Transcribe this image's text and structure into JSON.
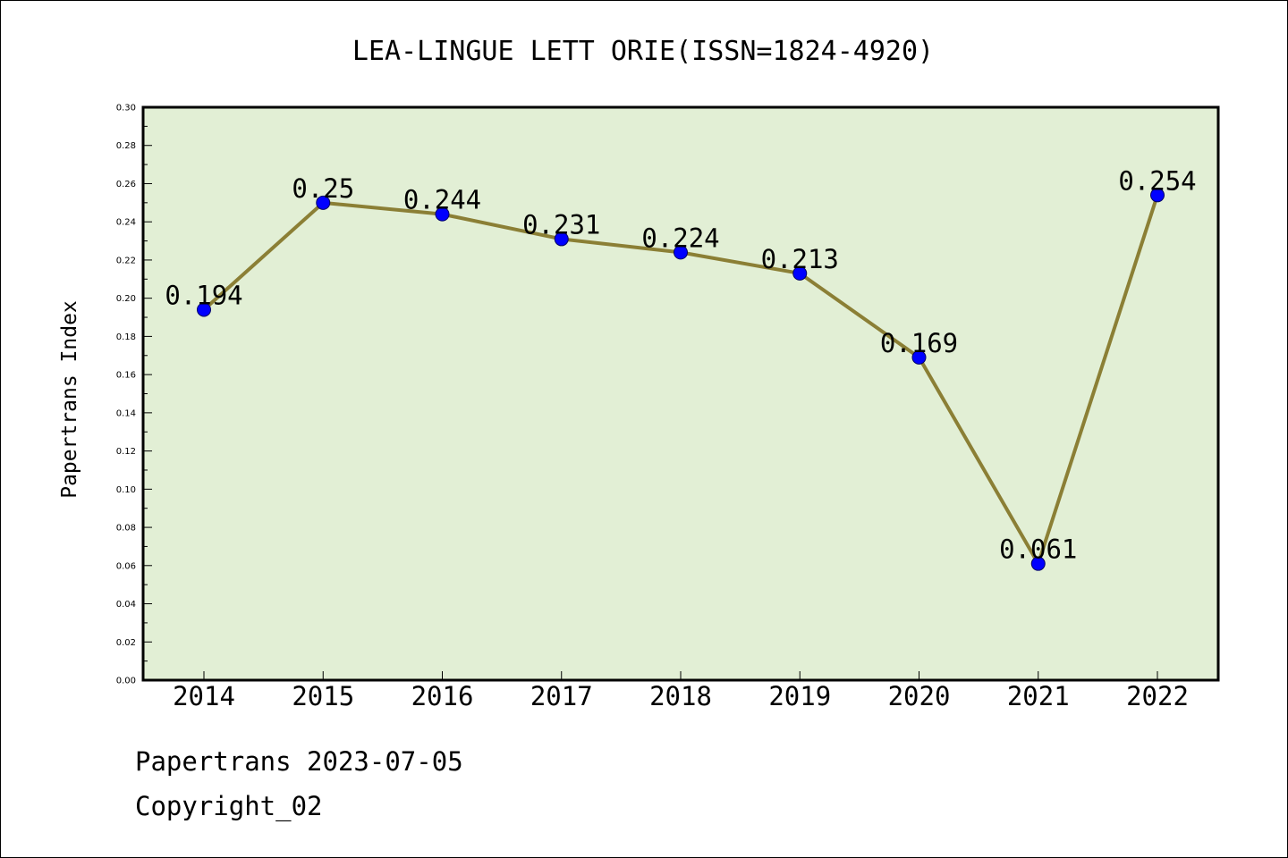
{
  "chart_data": {
    "type": "line",
    "title": "LEA-LINGUE LETT ORIE(ISSN=1824-4920)",
    "xlabel": "",
    "ylabel": "Papertrans Index",
    "categories": [
      "2014",
      "2015",
      "2016",
      "2017",
      "2018",
      "2019",
      "2020",
      "2021",
      "2022"
    ],
    "values": [
      0.194,
      0.25,
      0.244,
      0.231,
      0.224,
      0.213,
      0.169,
      0.061,
      0.254
    ],
    "data_labels": [
      "0.194",
      "0.25",
      "0.244",
      "0.231",
      "0.224",
      "0.213",
      "0.169",
      "0.061",
      "0.254"
    ],
    "ylim": [
      0,
      0.3
    ],
    "yticks": [
      "0.00",
      "0.02",
      "0.04",
      "0.06",
      "0.08",
      "0.10",
      "0.12",
      "0.14",
      "0.16",
      "0.18",
      "0.20",
      "0.22",
      "0.24",
      "0.26",
      "0.28",
      "0.30"
    ],
    "grid": false,
    "legend": "none",
    "colors": {
      "plot_background": "#e2efd5",
      "line": "#8b7f35",
      "marker": "#0000ff"
    }
  },
  "footer": {
    "source": "Papertrans 2023-07-05",
    "copyright": "Copyright_02"
  }
}
